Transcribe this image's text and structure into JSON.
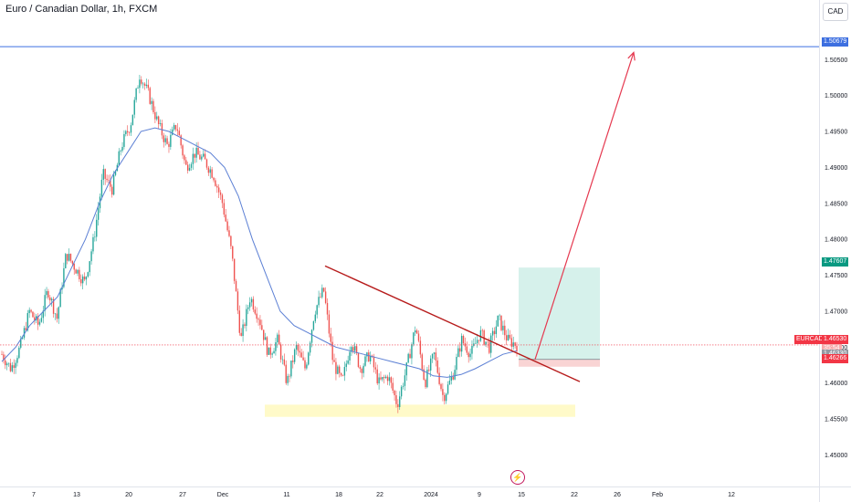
{
  "header": {
    "title": "Euro / Canadian Dollar, 1h, FXCM",
    "currency": "CAD"
  },
  "colors": {
    "up": "#26a69a",
    "down": "#ef5350",
    "ma": "#5b7fd4",
    "trendline": "#b71c1c",
    "target_line": "#3d6fe0",
    "projection": "#e53950",
    "support_zone": "#fff59d",
    "profit_zone": "#c8ece4",
    "loss_zone": "#f7c9c9"
  },
  "chart_data": {
    "type": "candlestick",
    "symbol": "EURCAD",
    "interval": "1h",
    "ylim": [
      1.446,
      1.511
    ],
    "y_ticks": [
      "1.45000",
      "1.45500",
      "1.46000",
      "1.46500",
      "1.47000",
      "1.47500",
      "1.48000",
      "1.48500",
      "1.49000",
      "1.49500",
      "1.50000",
      "1.50500"
    ],
    "x_ticks": [
      "7",
      "13",
      "20",
      "27",
      "Dec",
      "11",
      "18",
      "22",
      "2024",
      "9",
      "15",
      "22",
      "26",
      "Feb",
      "12"
    ],
    "price_path": [
      1.464,
      1.462,
      1.465,
      1.47,
      1.468,
      1.473,
      1.469,
      1.478,
      1.476,
      1.474,
      1.48,
      1.489,
      1.487,
      1.493,
      1.496,
      1.503,
      1.5,
      1.496,
      1.493,
      1.496,
      1.49,
      1.492,
      1.491,
      1.489,
      1.485,
      1.478,
      1.466,
      1.472,
      1.469,
      1.464,
      1.466,
      1.46,
      1.465,
      1.462,
      1.47,
      1.473,
      1.463,
      1.46,
      1.466,
      1.462,
      1.464,
      1.46,
      1.461,
      1.457,
      1.462,
      1.468,
      1.46,
      1.464,
      1.458,
      1.461,
      1.466,
      1.464,
      1.467,
      1.465,
      1.469,
      1.466,
      1.4653
    ],
    "moving_average": [
      1.463,
      1.465,
      1.468,
      1.47,
      1.472,
      1.476,
      1.48,
      1.485,
      1.489,
      1.492,
      1.495,
      1.4955,
      1.495,
      1.494,
      1.493,
      1.492,
      1.49,
      1.486,
      1.48,
      1.475,
      1.47,
      1.468,
      1.467,
      1.466,
      1.465,
      1.4645,
      1.464,
      1.4635,
      1.463,
      1.4625,
      1.462,
      1.461,
      1.4608,
      1.4612,
      1.462,
      1.463,
      1.464,
      1.4645
    ],
    "price_labels": {
      "target": "1.50679",
      "take_profit": "1.47607",
      "symbol_label": "EURCAD",
      "current": "1.46530",
      "countdown": "35:54",
      "entry": "1.46330",
      "stop": "1.46266"
    },
    "annotations": {
      "target_level": 1.50679,
      "take_profit_level": 1.47607,
      "entry_level": 1.4633,
      "stop_level": 1.46266,
      "current_level": 1.4653,
      "support_zone": [
        1.4553,
        1.457
      ],
      "trendline": [
        [
          1.4763
        ],
        [
          1.4602
        ]
      ],
      "projection_to": 1.506
    },
    "grid": false
  }
}
